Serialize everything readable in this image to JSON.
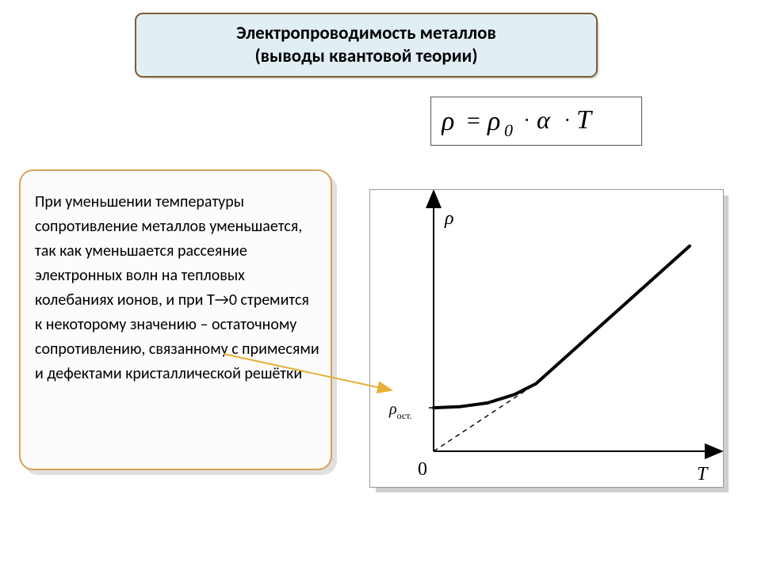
{
  "title": {
    "line1": "Электропроводимость металлов",
    "line2": "(выводы квантовой теории)",
    "bg_color": "#e1eef4",
    "border_color": "#7b5c3a",
    "shadow_color": "#e0e0e0",
    "fontsize": 23
  },
  "formula": {
    "text": "ρ = ρ₀ · α · T",
    "border_color": "#555555",
    "fontsize": 32
  },
  "description": {
    "text": "При уменьшении температуры сопротивление металлов уменьшается, так как уменьшается рассеяние электронных волн на тепловых колебаниях ионов, и при T→0 стремится к некоторому значению  – остаточному сопротивлению, связанному с примесями и дефектами кристаллической решётки",
    "bg_color": "#fcfcfc",
    "border_color": "#d9a05a",
    "shadow_color": "#e0e0e0",
    "fontsize": 20
  },
  "chart": {
    "type": "line",
    "xlabel": "T",
    "ylabel": "ρ",
    "residual_label": "ρост.",
    "origin_label": "0",
    "x_range": [
      0,
      100
    ],
    "y_range": [
      0,
      100
    ],
    "y_residual": 18,
    "curve_points": [
      [
        0,
        18
      ],
      [
        10,
        18.5
      ],
      [
        20,
        20
      ],
      [
        30,
        23.5
      ],
      [
        38,
        28
      ],
      [
        50,
        40
      ],
      [
        65,
        55
      ],
      [
        80,
        70
      ],
      [
        95,
        85
      ]
    ],
    "dashed_line": {
      "from": [
        0,
        0
      ],
      "to": [
        38,
        28
      ]
    },
    "curve_width": 4,
    "axis_width": 2,
    "dash_pattern": "6 5",
    "axis_color": "#000000",
    "curve_color": "#000000",
    "dashed_color": "#000000",
    "bg_color": "#ffffff",
    "label_fontsize": 24,
    "label_font": "Times New Roman"
  },
  "pointer": {
    "color": "#e8b038",
    "width": 2
  }
}
